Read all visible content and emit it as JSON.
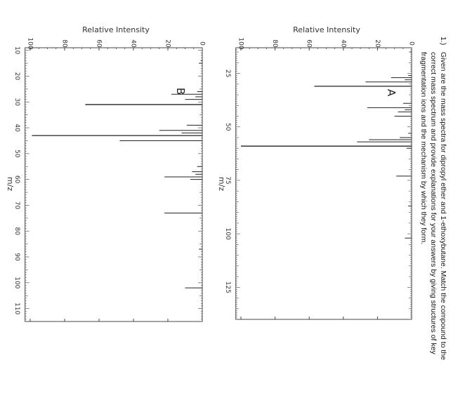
{
  "question": {
    "number": "1.)",
    "lines": [
      "Given are the mass spectra for dipropyl ether and 1-ethoxybutane. Match the compound to the",
      "correct mass spectrum and provide explanations for your answers by giving structures of key",
      "fragmentation ions and the mechanism by which they form."
    ]
  },
  "chart_data": [
    {
      "type": "bar",
      "panel_label": "A",
      "xlabel": "m/z",
      "ylabel": "Relative Intensity",
      "xlim": [
        13,
        140
      ],
      "ylim": [
        0,
        103
      ],
      "xticks": [
        25,
        50,
        75,
        100,
        125
      ],
      "yticks": [
        0,
        20,
        40,
        60,
        80,
        100
      ],
      "points": [
        {
          "x": 15,
          "y": 1
        },
        {
          "x": 26,
          "y": 2
        },
        {
          "x": 27,
          "y": 12
        },
        {
          "x": 28,
          "y": 4
        },
        {
          "x": 29,
          "y": 27
        },
        {
          "x": 31,
          "y": 57
        },
        {
          "x": 39,
          "y": 5
        },
        {
          "x": 41,
          "y": 26
        },
        {
          "x": 42,
          "y": 4
        },
        {
          "x": 43,
          "y": 8
        },
        {
          "x": 45,
          "y": 10
        },
        {
          "x": 53,
          "y": 2
        },
        {
          "x": 55,
          "y": 7
        },
        {
          "x": 56,
          "y": 25
        },
        {
          "x": 57,
          "y": 32
        },
        {
          "x": 59,
          "y": 100
        },
        {
          "x": 60,
          "y": 3
        },
        {
          "x": 73,
          "y": 9
        },
        {
          "x": 87,
          "y": 2
        },
        {
          "x": 102,
          "y": 4
        }
      ]
    },
    {
      "type": "bar",
      "panel_label": "B",
      "xlabel": "m/z",
      "ylabel": "Relative Intensity",
      "xlim": [
        9,
        115
      ],
      "ylim": [
        0,
        103
      ],
      "xticks": [
        10,
        20,
        30,
        40,
        50,
        60,
        70,
        80,
        90,
        100,
        110
      ],
      "yticks": [
        0,
        20,
        40,
        60,
        80,
        100
      ],
      "points": [
        {
          "x": 14,
          "y": 1
        },
        {
          "x": 15,
          "y": 2
        },
        {
          "x": 26,
          "y": 3
        },
        {
          "x": 27,
          "y": 18
        },
        {
          "x": 28,
          "y": 4
        },
        {
          "x": 29,
          "y": 10
        },
        {
          "x": 31,
          "y": 68
        },
        {
          "x": 39,
          "y": 9
        },
        {
          "x": 41,
          "y": 25
        },
        {
          "x": 42,
          "y": 12
        },
        {
          "x": 43,
          "y": 99
        },
        {
          "x": 45,
          "y": 48
        },
        {
          "x": 55,
          "y": 3
        },
        {
          "x": 57,
          "y": 6
        },
        {
          "x": 58,
          "y": 4
        },
        {
          "x": 59,
          "y": 22
        },
        {
          "x": 60,
          "y": 7
        },
        {
          "x": 73,
          "y": 22
        },
        {
          "x": 87,
          "y": 2
        },
        {
          "x": 102,
          "y": 10
        }
      ]
    }
  ]
}
